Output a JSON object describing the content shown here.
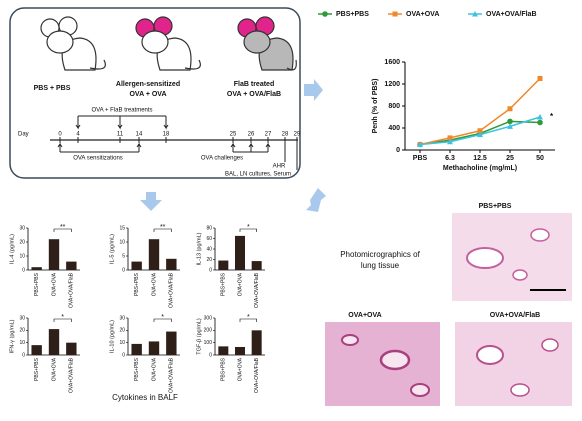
{
  "diagram": {
    "groups": [
      {
        "label": "PBS + PBS"
      },
      {
        "label": "Allergen-sensitized",
        "sublabel": "OVA + OVA"
      },
      {
        "label": "FlaB treated",
        "sublabel": "OVA + OVA/FlaB"
      }
    ],
    "timeline": {
      "day_label": "Day",
      "days": [
        0,
        4,
        11,
        14,
        18,
        25,
        26,
        27,
        28,
        29
      ],
      "treatments": "OVA + FlaB treatments",
      "sensitizations": "OVA sensitizations",
      "challenges": "OVA challenges",
      "ahr": "AHR",
      "harvest": "BAL, LN cultures, Serum"
    }
  },
  "chart_data": [
    {
      "type": "line",
      "xlabel": "Methacholine (mg/mL)",
      "ylabel": "Penh (% of PBS)",
      "categories": [
        "PBS",
        "6.3",
        "12.5",
        "25",
        "50"
      ],
      "series": [
        {
          "name": "PBS+PBS",
          "color": "#2e9a3a",
          "values": [
            100,
            180,
            300,
            520,
            500
          ]
        },
        {
          "name": "OVA+OVA",
          "color": "#f0882a",
          "values": [
            100,
            220,
            350,
            750,
            1300
          ]
        },
        {
          "name": "OVA+OVA/FlaB",
          "color": "#3cc3e0",
          "values": [
            100,
            150,
            280,
            430,
            600
          ]
        }
      ],
      "ylim": [
        0,
        1600
      ],
      "yticks": [
        0,
        400,
        800,
        1200,
        1600
      ],
      "annotation": "*",
      "legend": "top"
    },
    {
      "type": "bar",
      "ylabel": "IL-4 (pg/mL)",
      "categories": [
        "PBS+PBS",
        "OVA+OVA",
        "OVA+OVA/FlaB"
      ],
      "values": [
        2,
        22,
        6
      ],
      "color": "#2e2018",
      "ylim": [
        0,
        30
      ],
      "yticks": [
        0,
        10,
        20,
        30
      ],
      "annotation": "**"
    },
    {
      "type": "bar",
      "ylabel": "IL-5 (pg/mL)",
      "categories": [
        "PBS+PBS",
        "OVA+OVA",
        "OVA+OVA/FlaB"
      ],
      "values": [
        3,
        11,
        4
      ],
      "color": "#2e2018",
      "ylim": [
        0,
        15
      ],
      "yticks": [
        0,
        5,
        10,
        15
      ],
      "annotation": "**"
    },
    {
      "type": "bar",
      "ylabel": "IL-13 (pg/mL)",
      "categories": [
        "PBS+PBS",
        "OVA+OVA",
        "OVA+OVA/FlaB"
      ],
      "values": [
        18,
        65,
        17
      ],
      "color": "#2e2018",
      "ylim": [
        0,
        80
      ],
      "yticks": [
        0,
        20,
        40,
        60,
        80
      ],
      "annotation": "*"
    },
    {
      "type": "bar",
      "ylabel": "IFN-γ (pg/mL)",
      "categories": [
        "PBS+PBS",
        "OVA+OVA",
        "OVA+OVA/FlaB"
      ],
      "values": [
        8,
        21,
        10
      ],
      "color": "#2e2018",
      "ylim": [
        0,
        30
      ],
      "yticks": [
        0,
        10,
        20,
        30
      ],
      "annotation": "*"
    },
    {
      "type": "bar",
      "ylabel": "IL-10 (pg/mL)",
      "categories": [
        "PBS+PBS",
        "OVA+OVA",
        "OVA+OVA/FlaB"
      ],
      "values": [
        9,
        11,
        19
      ],
      "color": "#2e2018",
      "ylim": [
        0,
        30
      ],
      "yticks": [
        0,
        10,
        20,
        30
      ],
      "annotation": "*"
    },
    {
      "type": "bar",
      "ylabel": "TGF-β (pg/mL)",
      "categories": [
        "PBS+PBS",
        "OVA+OVA",
        "OVA+OVA/FlaB"
      ],
      "values": [
        70,
        65,
        200
      ],
      "color": "#2e2018",
      "ylim": [
        0,
        300
      ],
      "yticks": [
        0,
        100,
        200,
        300
      ],
      "annotation": "*"
    }
  ],
  "cytokines_caption": "Cytokines in BALF",
  "micrographs": {
    "caption": [
      "Photomicrographics of",
      "lung tissue"
    ],
    "panels": [
      "PBS+PBS",
      "OVA+OVA",
      "OVA+OVA/FlaB"
    ]
  }
}
